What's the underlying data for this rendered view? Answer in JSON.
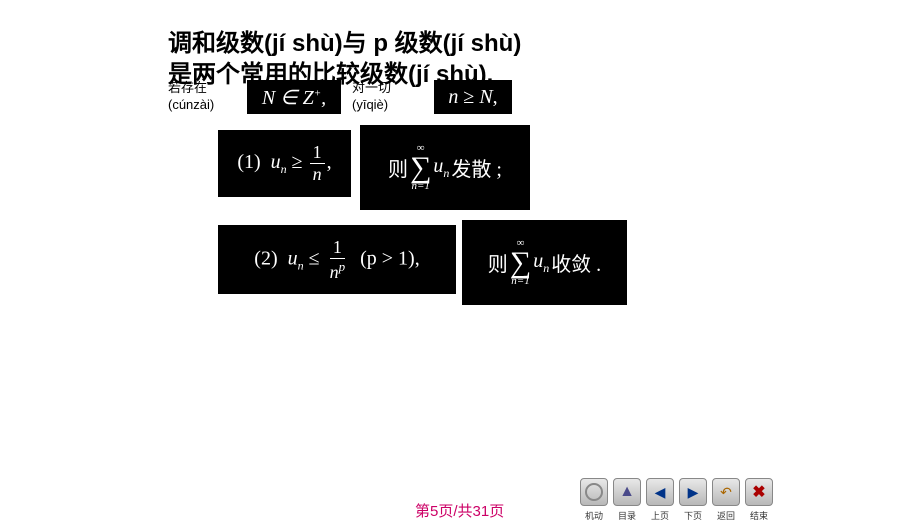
{
  "title": {
    "line1": "调和级数(jí shù)与 p 级数(jí shù)",
    "line2": "是两个常用的比较级数(jí shù)."
  },
  "annotations": {
    "cunzai": {
      "cn": "若存在",
      "pinyin": "(cúnzài)"
    },
    "yiqie": {
      "cn": "对一切",
      "pinyin": "(yīqiè)"
    }
  },
  "math": {
    "N_in_Z": "N ∈ Z⁺,",
    "n_ge_N": "n ≥ N,",
    "eq1": {
      "label": "(1)",
      "lhs_var": "u",
      "lhs_sub": "n",
      "rel": "≥",
      "frac_num": "1",
      "frac_den": "n",
      "trail": ","
    },
    "then1": {
      "prefix": "则",
      "sum_upper": "∞",
      "sum_lower": "n=1",
      "term_var": "u",
      "term_sub": "n",
      "suffix": "发散 ;"
    },
    "eq2": {
      "label": "(2)",
      "lhs_var": "u",
      "lhs_sub": "n",
      "rel": "≤",
      "frac_num": "1",
      "frac_den_base": "n",
      "frac_den_exp": "p",
      "cond": "(p > 1),",
      "trail": ""
    },
    "then2": {
      "prefix": "则",
      "sum_upper": "∞",
      "sum_lower": "n=1",
      "term_var": "u",
      "term_sub": "n",
      "suffix": "收敛 ."
    }
  },
  "pagination": {
    "current": "5",
    "total": "31",
    "template_prefix": "第",
    "template_mid": "页/共",
    "template_suffix": "页"
  },
  "nav": {
    "auto": "机动",
    "toc": "目录",
    "prev": "上页",
    "next": "下页",
    "back": "返回",
    "end": "结束"
  },
  "colors": {
    "title_color": "#000000",
    "page_number_color": "#cc0066",
    "math_bg": "#000000",
    "math_fg": "#ffffff"
  }
}
